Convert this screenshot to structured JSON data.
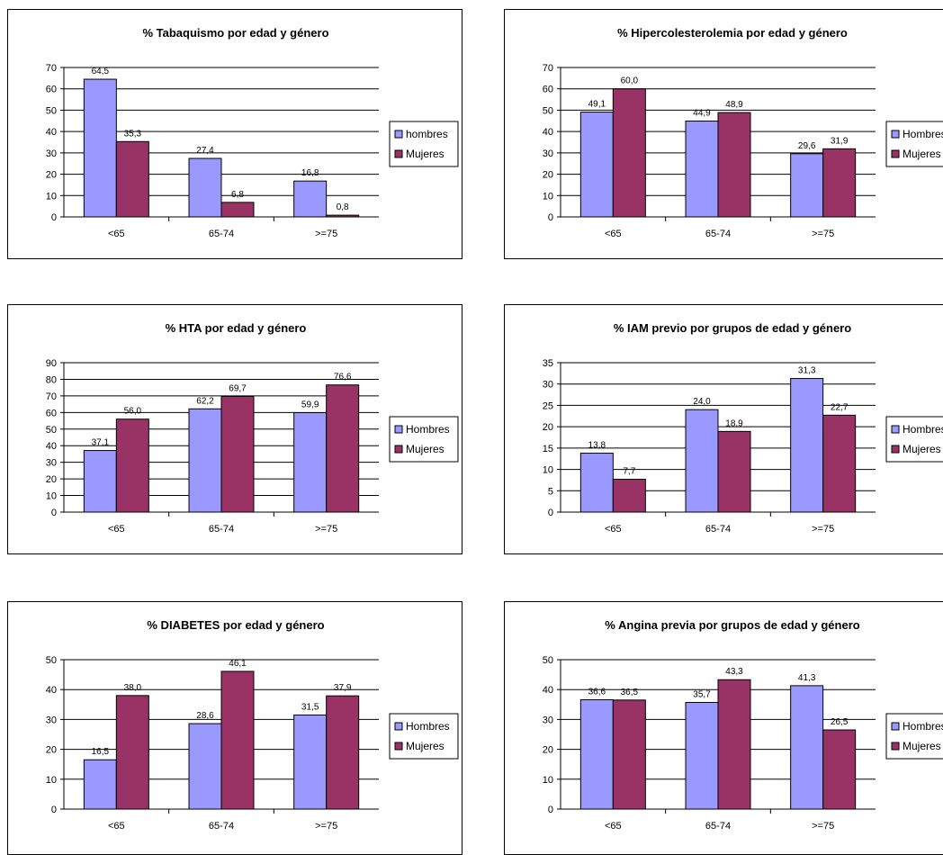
{
  "colors": {
    "hombres": "#9999ff",
    "mujeres": "#993366",
    "grid": "#000000",
    "axis": "#000000"
  },
  "chart_data": [
    {
      "id": "tabaquismo",
      "type": "bar",
      "title": "% Tabaquismo por edad y género",
      "categories": [
        "<65",
        "65-74",
        ">=75"
      ],
      "ylim": [
        0,
        70
      ],
      "ytick_step": 10,
      "value_format": "decimal_comma",
      "legend_position": "right",
      "grid": true,
      "series": [
        {
          "name": "hombres",
          "color": "#9999ff",
          "values": [
            64.5,
            27.4,
            16.8
          ]
        },
        {
          "name": "Mujeres",
          "color": "#993366",
          "values": [
            35.3,
            6.8,
            0.8
          ]
        }
      ]
    },
    {
      "id": "hipercolesterolemia",
      "type": "bar",
      "title": "% Hipercolesterolemia por edad y género",
      "categories": [
        "<65",
        "65-74",
        ">=75"
      ],
      "ylim": [
        0,
        70
      ],
      "ytick_step": 10,
      "value_format": "decimal_comma",
      "legend_position": "right",
      "grid": true,
      "series": [
        {
          "name": "Hombres",
          "color": "#9999ff",
          "values": [
            49.1,
            44.9,
            29.6
          ]
        },
        {
          "name": "Mujeres",
          "color": "#993366",
          "values": [
            60.0,
            48.9,
            31.9
          ]
        }
      ]
    },
    {
      "id": "hta",
      "type": "bar",
      "title": "% HTA por edad y género",
      "categories": [
        "<65",
        "65-74",
        ">=75"
      ],
      "ylim": [
        0,
        90
      ],
      "ytick_step": 10,
      "value_format": "decimal_comma",
      "legend_position": "right",
      "grid": true,
      "series": [
        {
          "name": "Hombres",
          "color": "#9999ff",
          "values": [
            37.1,
            62.2,
            59.9
          ]
        },
        {
          "name": "Mujeres",
          "color": "#993366",
          "values": [
            56.0,
            69.7,
            76.6
          ]
        }
      ]
    },
    {
      "id": "iam",
      "type": "bar",
      "title": "% IAM previo por grupos de edad y género",
      "categories": [
        "<65",
        "65-74",
        ">=75"
      ],
      "ylim": [
        0,
        35
      ],
      "ytick_step": 5,
      "value_format": "decimal_comma",
      "legend_position": "right",
      "grid": true,
      "series": [
        {
          "name": "Hombres",
          "color": "#9999ff",
          "values": [
            13.8,
            24.0,
            31.3
          ]
        },
        {
          "name": "Mujeres",
          "color": "#993366",
          "values": [
            7.7,
            18.9,
            22.7
          ]
        }
      ]
    },
    {
      "id": "diabetes",
      "type": "bar",
      "title": "% DIABETES por edad y género",
      "categories": [
        "<65",
        "65-74",
        ">=75"
      ],
      "ylim": [
        0,
        50
      ],
      "ytick_step": 10,
      "value_format": "decimal_comma",
      "legend_position": "right",
      "grid": true,
      "series": [
        {
          "name": "Hombres",
          "color": "#9999ff",
          "values": [
            16.5,
            28.6,
            31.5
          ]
        },
        {
          "name": "Mujeres",
          "color": "#993366",
          "values": [
            38.0,
            46.1,
            37.9
          ]
        }
      ]
    },
    {
      "id": "angina",
      "type": "bar",
      "title": "% Angina previa por grupos de edad y género",
      "categories": [
        "<65",
        "65-74",
        ">=75"
      ],
      "ylim": [
        0,
        50
      ],
      "ytick_step": 10,
      "value_format": "decimal_comma",
      "legend_position": "right",
      "grid": true,
      "series": [
        {
          "name": "Hombres",
          "color": "#9999ff",
          "values": [
            36.6,
            35.7,
            41.3
          ]
        },
        {
          "name": "Mujeres",
          "color": "#993366",
          "values": [
            36.5,
            43.3,
            26.5
          ]
        }
      ]
    }
  ]
}
